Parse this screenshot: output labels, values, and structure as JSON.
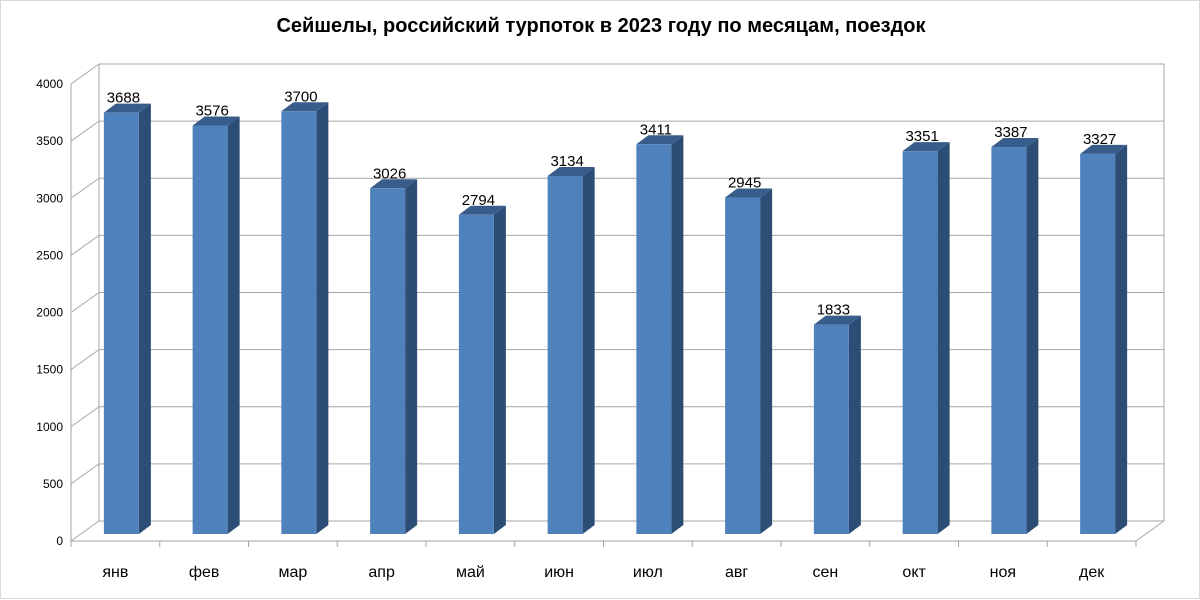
{
  "chart_data": {
    "type": "bar",
    "title": "Сейшелы, российский турпоток в 2023 году по месяцам, поездок",
    "xlabel": "",
    "ylabel": "",
    "categories": [
      "янв",
      "фев",
      "мар",
      "апр",
      "май",
      "июн",
      "июл",
      "авг",
      "сен",
      "окт",
      "ноя",
      "дек"
    ],
    "values": [
      3688,
      3576,
      3700,
      3026,
      2794,
      3134,
      3411,
      2945,
      1833,
      3351,
      3387,
      3327
    ],
    "ylim": [
      0,
      4000
    ],
    "yticks": [
      "0",
      "500",
      "1000",
      "1500",
      "2000",
      "2500",
      "3000",
      "3500",
      "4000"
    ],
    "data_labels": [
      "3688",
      "3576",
      "3700",
      "3026",
      "2794",
      "3134",
      "3411",
      "2945",
      "1833",
      "3351",
      "3387",
      "3327"
    ],
    "grid": true,
    "legend": "none",
    "style": "3d-column",
    "colors": {
      "bar_front": "#4f81bd",
      "bar_side": "#2c4d75",
      "bar_top": "#385d8a",
      "grid": "#a6a6a6"
    }
  }
}
